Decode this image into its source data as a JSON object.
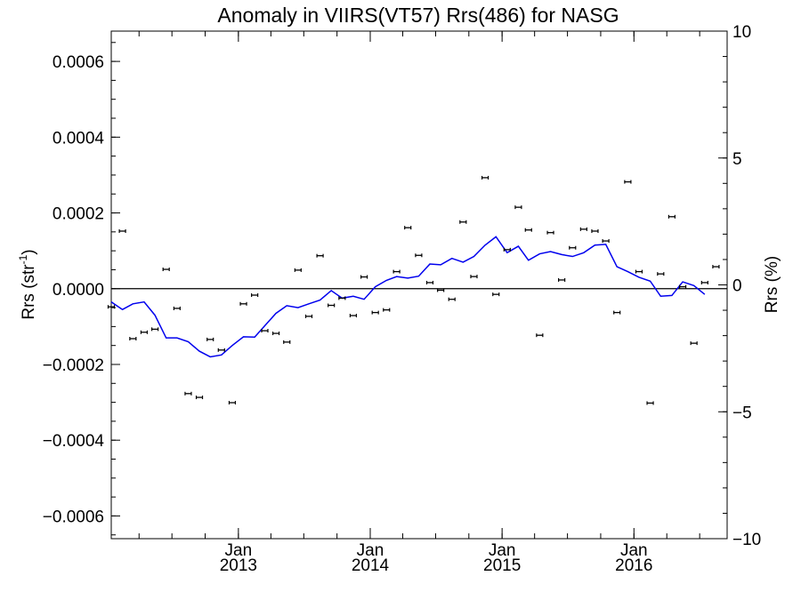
{
  "chart_data": {
    "type": "scatter",
    "title": "Anomaly in VIIRS(VT57) Rrs(486) for NASG",
    "ylabel_base": "Rrs (str",
    "ylabel_sup": "-1",
    "ylabel_end": ")",
    "y2label": "Rrs (%)",
    "xlabel": "",
    "xlim": [
      "2012-01-15",
      "2016-09-15"
    ],
    "ylim": [
      -0.00066,
      0.00068
    ],
    "y2lim": [
      -10,
      10
    ],
    "y_ticks": [
      {
        "value": -0.0006,
        "label": "−0.0006"
      },
      {
        "value": -0.0004,
        "label": "−0.0004"
      },
      {
        "value": -0.0002,
        "label": "−0.0002"
      },
      {
        "value": 0.0,
        "label": "0.0000"
      },
      {
        "value": 0.0002,
        "label": "0.0002"
      },
      {
        "value": 0.0004,
        "label": "0.0004"
      },
      {
        "value": 0.0006,
        "label": "0.0006"
      }
    ],
    "y2_ticks": [
      {
        "value": -10,
        "label": "−10"
      },
      {
        "value": -5,
        "label": "−5"
      },
      {
        "value": 0,
        "label": "0"
      },
      {
        "value": 5,
        "label": "5"
      },
      {
        "value": 10,
        "label": "10"
      }
    ],
    "x_ticks": [
      {
        "date": "2013-01-01",
        "month": "Jan",
        "year": "2013"
      },
      {
        "date": "2014-01-01",
        "month": "Jan",
        "year": "2014"
      },
      {
        "date": "2015-01-01",
        "month": "Jan",
        "year": "2015"
      },
      {
        "date": "2016-01-01",
        "month": "Jan",
        "year": "2016"
      }
    ],
    "grid": false,
    "zero_line": true,
    "series": [
      {
        "type": "scatter_errorbar",
        "color": "#000000",
        "points": [
          {
            "x": "2012-01-15",
            "y": -4.8e-05
          },
          {
            "x": "2012-02-15",
            "y": 0.000152
          },
          {
            "x": "2012-03-15",
            "y": -0.000132
          },
          {
            "x": "2012-04-15",
            "y": -0.000115
          },
          {
            "x": "2012-05-15",
            "y": -0.000107
          },
          {
            "x": "2012-06-15",
            "y": 5.1e-05
          },
          {
            "x": "2012-07-15",
            "y": -5.2e-05
          },
          {
            "x": "2012-08-15",
            "y": -0.000277
          },
          {
            "x": "2012-09-15",
            "y": -0.000287
          },
          {
            "x": "2012-10-15",
            "y": -0.000134
          },
          {
            "x": "2012-11-15",
            "y": -0.000162
          },
          {
            "x": "2012-12-15",
            "y": -0.000301
          },
          {
            "x": "2013-01-15",
            "y": -4e-05
          },
          {
            "x": "2013-02-15",
            "y": -1.7e-05
          },
          {
            "x": "2013-03-15",
            "y": -0.000111
          },
          {
            "x": "2013-04-15",
            "y": -0.000118
          },
          {
            "x": "2013-05-15",
            "y": -0.000141
          },
          {
            "x": "2013-06-15",
            "y": 4.9e-05
          },
          {
            "x": "2013-07-15",
            "y": -7.3e-05
          },
          {
            "x": "2013-08-15",
            "y": 8.7e-05
          },
          {
            "x": "2013-09-15",
            "y": -4.4e-05
          },
          {
            "x": "2013-10-15",
            "y": -2.5e-05
          },
          {
            "x": "2013-11-15",
            "y": -7.1e-05
          },
          {
            "x": "2013-12-15",
            "y": 3.1e-05
          },
          {
            "x": "2014-01-15",
            "y": -6.3e-05
          },
          {
            "x": "2014-02-15",
            "y": -5.6e-05
          },
          {
            "x": "2014-03-15",
            "y": 4.5e-05
          },
          {
            "x": "2014-04-15",
            "y": 0.000161
          },
          {
            "x": "2014-05-15",
            "y": 8.8e-05
          },
          {
            "x": "2014-06-15",
            "y": 1.6e-05
          },
          {
            "x": "2014-07-15",
            "y": -4e-06
          },
          {
            "x": "2014-08-15",
            "y": -2.8e-05
          },
          {
            "x": "2014-09-15",
            "y": 0.000176
          },
          {
            "x": "2014-10-15",
            "y": 3.2e-05
          },
          {
            "x": "2014-11-15",
            "y": 0.000293
          },
          {
            "x": "2014-12-15",
            "y": -1.5e-05
          },
          {
            "x": "2015-01-15",
            "y": 0.000103
          },
          {
            "x": "2015-02-15",
            "y": 0.000215
          },
          {
            "x": "2015-03-15",
            "y": 0.000155
          },
          {
            "x": "2015-04-15",
            "y": -0.000123
          },
          {
            "x": "2015-05-15",
            "y": 0.000148
          },
          {
            "x": "2015-06-15",
            "y": 2.3e-05
          },
          {
            "x": "2015-07-15",
            "y": 0.000108
          },
          {
            "x": "2015-08-15",
            "y": 0.000157
          },
          {
            "x": "2015-09-15",
            "y": 0.000152
          },
          {
            "x": "2015-10-15",
            "y": 0.000126
          },
          {
            "x": "2015-11-15",
            "y": -6.3e-05
          },
          {
            "x": "2015-12-15",
            "y": 0.000282
          },
          {
            "x": "2016-01-15",
            "y": 4.5e-05
          },
          {
            "x": "2016-02-15",
            "y": -0.000302
          },
          {
            "x": "2016-03-15",
            "y": 3.9e-05
          },
          {
            "x": "2016-04-15",
            "y": 0.00019
          },
          {
            "x": "2016-05-15",
            "y": 5e-06
          },
          {
            "x": "2016-06-15",
            "y": -0.000144
          },
          {
            "x": "2016-07-15",
            "y": 1.6e-05
          },
          {
            "x": "2016-08-15",
            "y": 5.8e-05
          }
        ]
      },
      {
        "type": "line",
        "color": "#0000ee",
        "points": [
          {
            "x": "2012-01-15",
            "y": -3.5e-05
          },
          {
            "x": "2012-02-15",
            "y": -5.5e-05
          },
          {
            "x": "2012-03-15",
            "y": -4e-05
          },
          {
            "x": "2012-04-15",
            "y": -3.5e-05
          },
          {
            "x": "2012-05-15",
            "y": -7e-05
          },
          {
            "x": "2012-06-15",
            "y": -0.00013
          },
          {
            "x": "2012-07-15",
            "y": -0.00013
          },
          {
            "x": "2012-08-15",
            "y": -0.00014
          },
          {
            "x": "2012-09-15",
            "y": -0.000165
          },
          {
            "x": "2012-10-15",
            "y": -0.00018
          },
          {
            "x": "2012-11-15",
            "y": -0.000175
          },
          {
            "x": "2012-12-15",
            "y": -0.00015
          },
          {
            "x": "2013-01-15",
            "y": -0.000127
          },
          {
            "x": "2013-02-15",
            "y": -0.000128
          },
          {
            "x": "2013-03-15",
            "y": -9.8e-05
          },
          {
            "x": "2013-04-15",
            "y": -6.5e-05
          },
          {
            "x": "2013-05-15",
            "y": -4.5e-05
          },
          {
            "x": "2013-06-15",
            "y": -5e-05
          },
          {
            "x": "2013-07-15",
            "y": -4e-05
          },
          {
            "x": "2013-08-15",
            "y": -3e-05
          },
          {
            "x": "2013-09-15",
            "y": -5e-06
          },
          {
            "x": "2013-10-15",
            "y": -2.5e-05
          },
          {
            "x": "2013-11-15",
            "y": -2e-05
          },
          {
            "x": "2013-12-15",
            "y": -2.8e-05
          },
          {
            "x": "2014-01-15",
            "y": 5e-06
          },
          {
            "x": "2014-02-15",
            "y": 2.2e-05
          },
          {
            "x": "2014-03-15",
            "y": 3.2e-05
          },
          {
            "x": "2014-04-15",
            "y": 2.8e-05
          },
          {
            "x": "2014-05-15",
            "y": 3.3e-05
          },
          {
            "x": "2014-06-15",
            "y": 6.5e-05
          },
          {
            "x": "2014-07-15",
            "y": 6.3e-05
          },
          {
            "x": "2014-08-15",
            "y": 8e-05
          },
          {
            "x": "2014-09-15",
            "y": 7e-05
          },
          {
            "x": "2014-10-15",
            "y": 8.5e-05
          },
          {
            "x": "2014-11-15",
            "y": 0.000115
          },
          {
            "x": "2014-12-15",
            "y": 0.000137
          },
          {
            "x": "2015-01-15",
            "y": 9.5e-05
          },
          {
            "x": "2015-02-15",
            "y": 0.000112
          },
          {
            "x": "2015-03-15",
            "y": 7.5e-05
          },
          {
            "x": "2015-04-15",
            "y": 9.2e-05
          },
          {
            "x": "2015-05-15",
            "y": 9.8e-05
          },
          {
            "x": "2015-06-15",
            "y": 9e-05
          },
          {
            "x": "2015-07-15",
            "y": 8.5e-05
          },
          {
            "x": "2015-08-15",
            "y": 9.5e-05
          },
          {
            "x": "2015-09-15",
            "y": 0.000115
          },
          {
            "x": "2015-10-15",
            "y": 0.000117
          },
          {
            "x": "2015-11-15",
            "y": 5.8e-05
          },
          {
            "x": "2015-12-15",
            "y": 4.5e-05
          },
          {
            "x": "2016-01-15",
            "y": 3e-05
          },
          {
            "x": "2016-02-15",
            "y": 2e-05
          },
          {
            "x": "2016-03-15",
            "y": -2e-05
          },
          {
            "x": "2016-04-15",
            "y": -1.8e-05
          },
          {
            "x": "2016-05-15",
            "y": 1.8e-05
          },
          {
            "x": "2016-06-15",
            "y": 8e-06
          },
          {
            "x": "2016-07-15",
            "y": -1.5e-05
          }
        ]
      }
    ]
  }
}
